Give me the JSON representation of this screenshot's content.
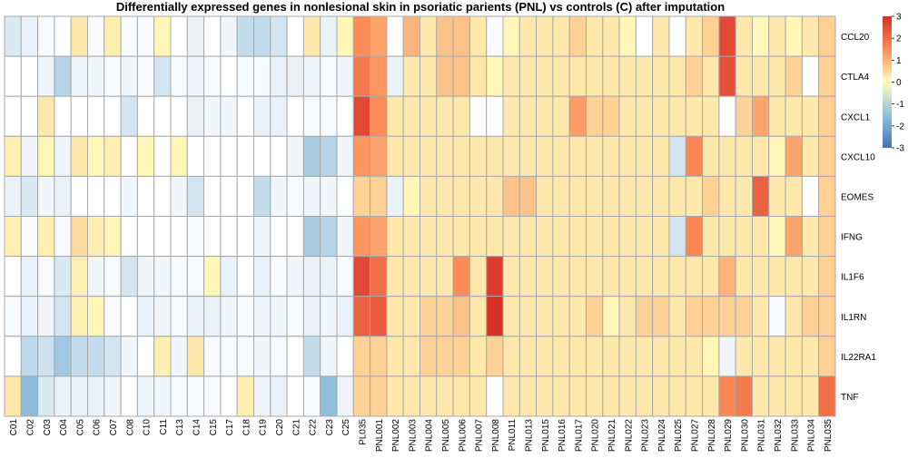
{
  "chart_data": {
    "type": "heatmap",
    "title": "Differentially expressed genes in nonlesional skin in psoriatic parients (PNL) vs controls (C) after imputation",
    "rows": [
      "CCL20",
      "CTLA4",
      "CXCL1",
      "CXCL10",
      "EOMES",
      "IFNG",
      "IL1F6",
      "IL1RN",
      "IL22RA1",
      "TNF"
    ],
    "columns": [
      "C01",
      "C02",
      "C03",
      "C04",
      "C05",
      "C06",
      "C07",
      "C08",
      "C10",
      "C11",
      "C13",
      "C14",
      "C15",
      "C17",
      "C18",
      "C19",
      "C20",
      "C21",
      "C22",
      "C23",
      "C25",
      "PL035",
      "PNL001",
      "PNL002",
      "PNL003",
      "PNL004",
      "PNL005",
      "PNL006",
      "PNL007",
      "PNL008",
      "PNL011",
      "PNL013",
      "PNL015",
      "PNL016",
      "PNL017",
      "PNL020",
      "PNL021",
      "PNL022",
      "PNL023",
      "PNL024",
      "PNL025",
      "PNL027",
      "PNL028",
      "PNL029",
      "PNL030",
      "PNL031",
      "PNL032",
      "PNL033",
      "PNL034",
      "PNL035"
    ],
    "values": [
      [
        -0.5,
        -0.3,
        -0.1,
        0,
        0.3,
        -0.1,
        0.2,
        -0.1,
        -0.1,
        0.1,
        0,
        -0.3,
        0,
        -0.2,
        -0.8,
        -0.8,
        -0.6,
        0,
        0.3,
        -0.3,
        0.1,
        1.5,
        1.2,
        0,
        1.0,
        0.3,
        0.8,
        0.8,
        0.3,
        -0.1,
        0.1,
        0.3,
        0.3,
        0.3,
        0.6,
        0.3,
        0.3,
        0.1,
        0,
        0.3,
        0,
        0.3,
        0.6,
        2.6,
        0.3,
        0.1,
        0.3,
        0.1,
        0.3,
        0.6
      ],
      [
        0,
        0,
        -0.2,
        -1.0,
        -0.2,
        -0.2,
        -0.1,
        -0.2,
        -0.1,
        -0.6,
        -0.1,
        -0.2,
        -0.1,
        0,
        -0.1,
        -0.1,
        -0.3,
        -0.3,
        -0.2,
        -0.1,
        -0.2,
        1.8,
        1.4,
        -0.3,
        0.3,
        0.3,
        0.8,
        0.8,
        0.3,
        0.1,
        0.3,
        0.3,
        0.3,
        0.3,
        0.3,
        0.3,
        0.3,
        0.3,
        0.3,
        0.3,
        0.3,
        0.6,
        0.3,
        2.5,
        0.3,
        0.3,
        0.3,
        0.6,
        0,
        0.6
      ],
      [
        0,
        0,
        0.3,
        0,
        0,
        0,
        0,
        -0.6,
        0,
        0,
        0,
        -0.3,
        -0.2,
        -0.2,
        0,
        -0.3,
        -0.3,
        0,
        -0.1,
        -0.1,
        0,
        2.6,
        1.5,
        0.3,
        0.3,
        0.3,
        0.3,
        0.3,
        0,
        0,
        0.3,
        0.3,
        0.3,
        0.3,
        1.3,
        0.6,
        0.6,
        0.3,
        0.3,
        0.3,
        0.3,
        0.3,
        0.3,
        0,
        0.6,
        1.2,
        0.3,
        0.3,
        0.3,
        0.6
      ],
      [
        0.2,
        -0.2,
        0.1,
        -0.2,
        0.3,
        0.1,
        0.2,
        0,
        0.1,
        0,
        0.1,
        0,
        0,
        0,
        0,
        0,
        0,
        -0.2,
        -1.2,
        -1.0,
        -0.2,
        1.4,
        1.2,
        0.3,
        0.3,
        0.3,
        0.3,
        0.3,
        0.3,
        0.3,
        0.3,
        0.3,
        0.3,
        0.3,
        0.3,
        0.3,
        0.3,
        0.3,
        0.3,
        0.3,
        -0.6,
        1.6,
        0.3,
        0.3,
        0.3,
        0.3,
        0.1,
        1.2,
        0.3,
        0.6
      ],
      [
        -0.3,
        -0.5,
        -0.2,
        -0.3,
        0,
        0,
        0,
        -0.2,
        0,
        0,
        -0.2,
        -0.6,
        0,
        0,
        0,
        -0.8,
        -0.2,
        -0.1,
        -0.2,
        -0.2,
        0,
        0.6,
        0.6,
        -0.3,
        0.1,
        0.3,
        0.3,
        0.3,
        0.3,
        0.3,
        0.8,
        0.8,
        0.3,
        0.3,
        0.3,
        0.3,
        0.3,
        0.3,
        0.3,
        0.3,
        0.3,
        0.3,
        0.6,
        0.3,
        0.3,
        2.2,
        0.3,
        0.3,
        0,
        0.6
      ],
      [
        0.2,
        -0.1,
        0.2,
        -0.1,
        0.5,
        0.2,
        0.1,
        0,
        0,
        0,
        0,
        -0.1,
        0,
        0,
        0,
        -0.2,
        0,
        0,
        -1.2,
        -1.0,
        -0.2,
        1.4,
        1.2,
        0.3,
        0.3,
        0.3,
        0.3,
        0.3,
        0.3,
        0.3,
        0.3,
        0.3,
        0.3,
        0.3,
        0.3,
        0.3,
        0.3,
        0.3,
        0.3,
        0.3,
        -0.6,
        1.6,
        0.3,
        0.3,
        0.3,
        0.3,
        0.1,
        1.2,
        0.3,
        0.6
      ],
      [
        0,
        -0.3,
        -0.1,
        -0.5,
        0.2,
        -0.2,
        -0.1,
        -0.6,
        -0.2,
        -0.2,
        -0.1,
        -0.1,
        0.1,
        -0.3,
        0,
        -0.3,
        -0.1,
        -0.2,
        -0.3,
        -0.3,
        -0.1,
        2.6,
        2.0,
        0.3,
        0.3,
        0.3,
        0.3,
        1.5,
        0.3,
        2.8,
        0.3,
        0.3,
        0.3,
        0.3,
        0.3,
        0.3,
        0.3,
        0.3,
        0.3,
        0.3,
        0.3,
        0.3,
        0.3,
        1.0,
        0.3,
        0.3,
        0.3,
        0.3,
        0.3,
        0.6
      ],
      [
        -0.1,
        -0.3,
        -0.2,
        -0.6,
        0.2,
        0.1,
        -0.1,
        0,
        -0.3,
        -0.2,
        -0.1,
        -0.3,
        -0.3,
        -0.2,
        -0.1,
        -0.2,
        -0.2,
        -0.1,
        -0.3,
        -0.2,
        -0.3,
        2.2,
        2.3,
        0.3,
        0.3,
        0.6,
        0.6,
        0.8,
        0.3,
        3.0,
        0.3,
        0.3,
        0.3,
        0.3,
        0.3,
        0.6,
        0.1,
        0.3,
        0.6,
        0.6,
        0.3,
        0.6,
        0.6,
        0.6,
        0.6,
        0.3,
        -0.1,
        0.3,
        0.6,
        0.6
      ],
      [
        0,
        -0.9,
        -0.7,
        -1.3,
        -0.8,
        -0.8,
        -0.6,
        -0.2,
        0,
        0.2,
        -0.2,
        0.3,
        -0.1,
        -0.1,
        -0.1,
        -0.2,
        -0.1,
        0,
        -0.8,
        -0.2,
        0,
        0.6,
        0.6,
        0.3,
        0.3,
        0.6,
        0.6,
        0.6,
        0.3,
        0.6,
        0.3,
        0.3,
        0.3,
        0.3,
        0.3,
        0.3,
        0.3,
        0.3,
        0.3,
        0.3,
        0.3,
        0.3,
        0.1,
        -0.2,
        0.3,
        0.3,
        0.3,
        0.3,
        0.3,
        0.6
      ],
      [
        0.3,
        -1.6,
        -0.5,
        -0.3,
        -0.3,
        -0.3,
        -0.2,
        0,
        -0.2,
        -0.2,
        -0.1,
        -0.1,
        -0.1,
        0,
        0.2,
        -0.2,
        -0.3,
        0,
        -0.1,
        -1.5,
        -0.2,
        0.6,
        0.6,
        0.3,
        0.3,
        0.3,
        0.3,
        0.3,
        0.3,
        0,
        0.3,
        0.3,
        0.3,
        0.3,
        0.3,
        0.3,
        0.3,
        0.3,
        0.3,
        0.3,
        0.3,
        0.3,
        0.3,
        1.6,
        1.8,
        0.3,
        0.3,
        0.3,
        0.3,
        2.0
      ]
    ],
    "color_scale": {
      "min": -3,
      "max": 3,
      "low": "#4575b4",
      "mid": "#ffffbf",
      "high": "#d73027"
    },
    "legend_ticks": [
      3,
      2,
      1,
      0,
      -1,
      -2,
      -3
    ],
    "legend_position": "top-right",
    "grid": true
  }
}
